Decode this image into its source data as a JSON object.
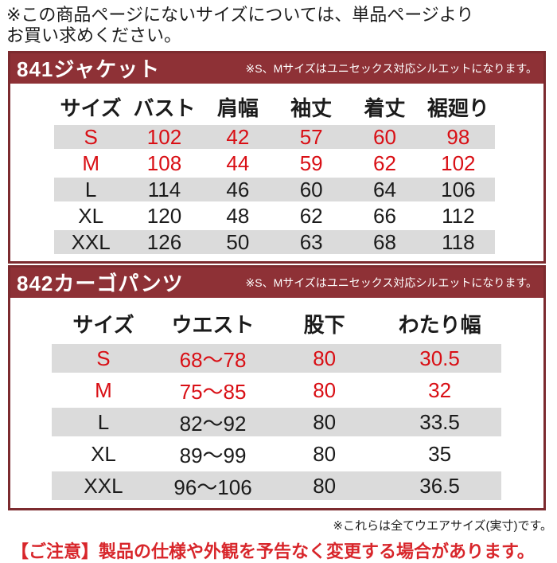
{
  "page": {
    "top_note_line1": "※この商品ページにないサイズについては、単品ページより",
    "top_note_line2": "お買い求めください。",
    "footer_note": "※これらは全てウエアサイズ(実寸)です。",
    "caution_note": "【ご注意】製品の仕様や外観を予告なく変更する場合があります。"
  },
  "colors": {
    "banner_maroon": "#8e3136",
    "box_border": "#7c2b2f",
    "stripe_gray": "#dbdbdb",
    "highlight_red": "#d90f15",
    "caution_red": "#d8262b"
  },
  "jacket": {
    "title": "841ジャケット",
    "note": "※S、Mサイズはユニセックス対応シルエットになります。",
    "headers": [
      "サイズ",
      "バスト",
      "肩幅",
      "袖丈",
      "着丈",
      "裾廻り"
    ],
    "rows": [
      {
        "size": "S",
        "values": [
          "102",
          "42",
          "57",
          "60",
          "98"
        ],
        "highlight": true,
        "striped": true
      },
      {
        "size": "M",
        "values": [
          "108",
          "44",
          "59",
          "62",
          "102"
        ],
        "highlight": true,
        "striped": false
      },
      {
        "size": "L",
        "values": [
          "114",
          "46",
          "60",
          "64",
          "106"
        ],
        "highlight": false,
        "striped": true
      },
      {
        "size": "XL",
        "values": [
          "120",
          "48",
          "62",
          "66",
          "112"
        ],
        "highlight": false,
        "striped": false
      },
      {
        "size": "XXL",
        "values": [
          "126",
          "50",
          "63",
          "68",
          "118"
        ],
        "highlight": false,
        "striped": true
      }
    ]
  },
  "pants": {
    "title": "842カーゴパンツ",
    "note": "※S、Mサイズはユニセックス対応シルエットになります。",
    "headers": [
      "サイズ",
      "ウエスト",
      "股下",
      "わたり幅"
    ],
    "rows": [
      {
        "size": "S",
        "values": [
          "68〜78",
          "80",
          "30.5"
        ],
        "highlight": true,
        "striped": true
      },
      {
        "size": "M",
        "values": [
          "75〜85",
          "80",
          "32"
        ],
        "highlight": true,
        "striped": false
      },
      {
        "size": "L",
        "values": [
          "82〜92",
          "80",
          "33.5"
        ],
        "highlight": false,
        "striped": true
      },
      {
        "size": "XL",
        "values": [
          "89〜99",
          "80",
          "35"
        ],
        "highlight": false,
        "striped": false
      },
      {
        "size": "XXL",
        "values": [
          "96〜106",
          "80",
          "36.5"
        ],
        "highlight": false,
        "striped": true
      }
    ]
  }
}
